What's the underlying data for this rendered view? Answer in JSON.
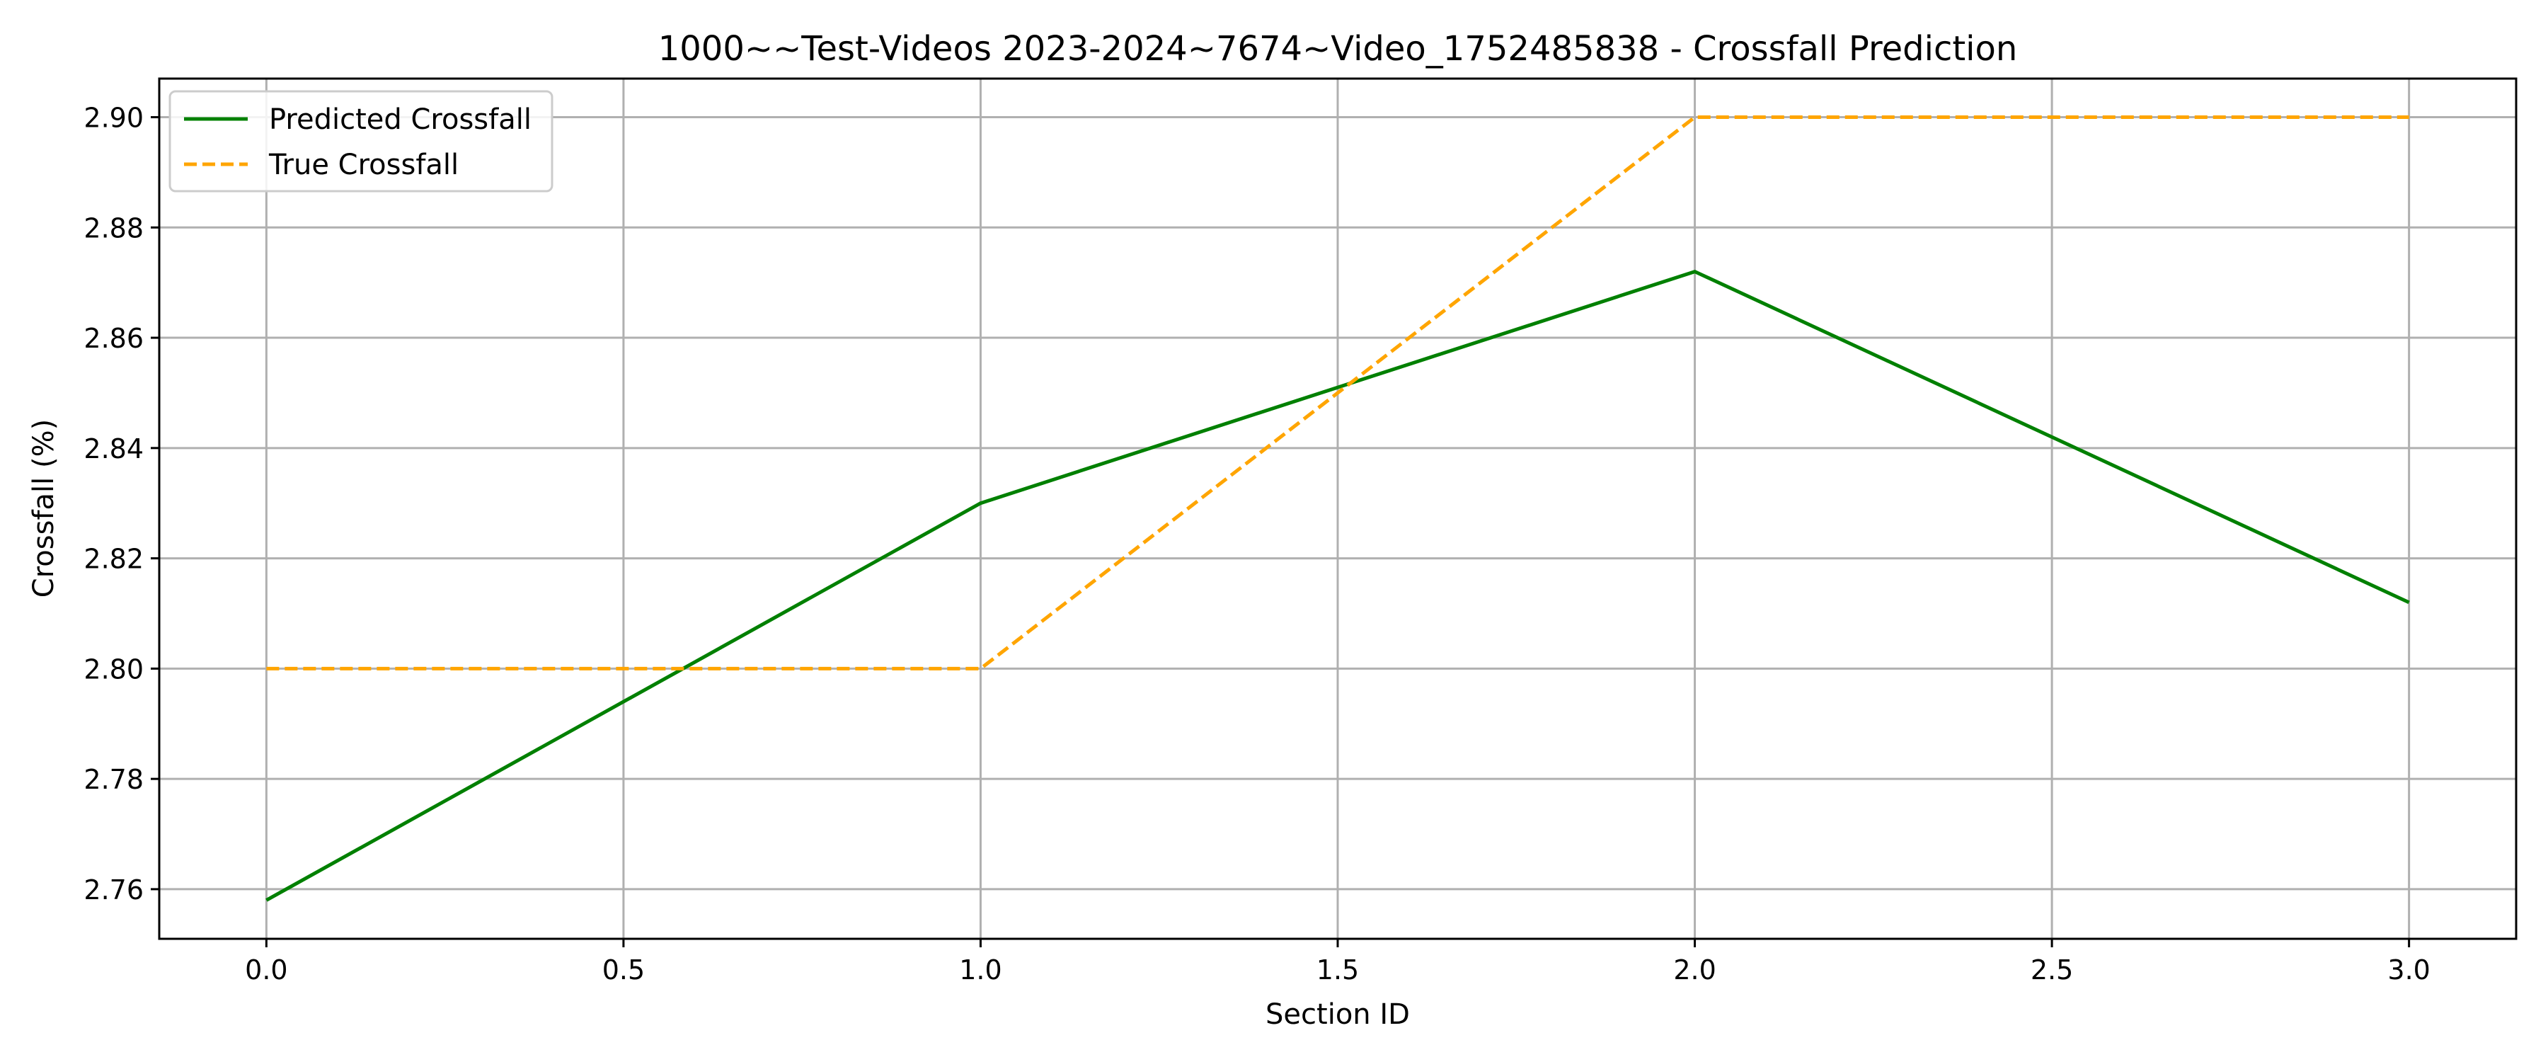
{
  "chart_data": {
    "type": "line",
    "title": "1000~~Test-Videos 2023-2024~7674~Video_1752485838 - Crossfall Prediction",
    "xlabel": "Section ID",
    "ylabel": "Crossfall (%)",
    "xlim": [
      -0.15,
      3.15
    ],
    "ylim": [
      2.751,
      2.907
    ],
    "xticks": [
      0.0,
      0.5,
      1.0,
      1.5,
      2.0,
      2.5,
      3.0
    ],
    "xtick_labels": [
      "0.0",
      "0.5",
      "1.0",
      "1.5",
      "2.0",
      "2.5",
      "3.0"
    ],
    "yticks": [
      2.76,
      2.78,
      2.8,
      2.82,
      2.84,
      2.86,
      2.88,
      2.9
    ],
    "ytick_labels": [
      "2.76",
      "2.78",
      "2.80",
      "2.82",
      "2.84",
      "2.86",
      "2.88",
      "2.90"
    ],
    "grid": true,
    "legend_position": "top-left",
    "x": [
      0,
      1,
      2,
      3
    ],
    "series": [
      {
        "name": "Predicted Crossfall",
        "values": [
          2.758,
          2.83,
          2.872,
          2.812
        ],
        "color": "#008000",
        "style": "solid"
      },
      {
        "name": "True Crossfall",
        "values": [
          2.8,
          2.8,
          2.9,
          2.9
        ],
        "color": "#FFA500",
        "style": "dashed"
      }
    ]
  }
}
